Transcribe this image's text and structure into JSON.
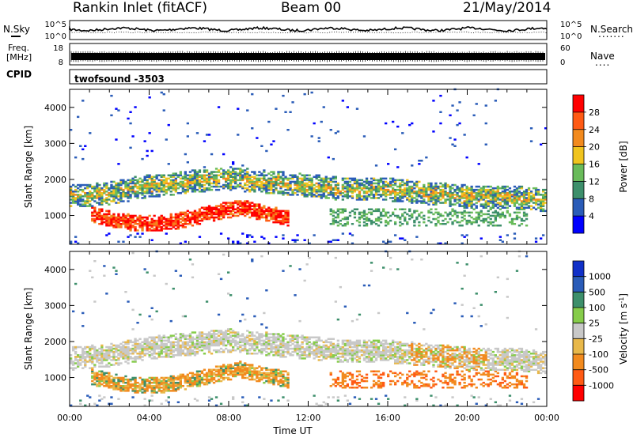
{
  "header": {
    "station": "Rankin Inlet (fitACF)",
    "beam": "Beam 00",
    "date": "21/May/2014"
  },
  "noise_panel": {
    "left_label": "N.Sky",
    "right_label": "N.Search",
    "right_marker": ".......",
    "left_ticks": [
      "10^5",
      "10^0"
    ],
    "right_ticks": [
      "10^5",
      "10^0"
    ]
  },
  "freq_panel": {
    "left_label_1": "Freq.",
    "left_label_2": "[MHz]",
    "right_label": "Nave",
    "right_marker": "....",
    "left_ticks": [
      "18",
      "8"
    ],
    "right_ticks": [
      "60",
      "0"
    ]
  },
  "cpid_panel": {
    "label": "CPID",
    "value": "twofsound -3503"
  },
  "colors": {
    "power_scale": [
      "#0000ff",
      "#2a5cb8",
      "#3d8f6b",
      "#69bb5a",
      "#f0c41e",
      "#f28a1e",
      "#ff5a14",
      "#ff0000"
    ],
    "velocity_scale": [
      "#ff0000",
      "#ff5a14",
      "#f28a1e",
      "#e8b84a",
      "#c8c8c8",
      "#86cc4a",
      "#3d8f6b",
      "#2a5cb8",
      "#1030c8"
    ]
  },
  "chart_data": [
    {
      "type": "heatmap",
      "quantity": "Power",
      "ylabel": "Slant Range [km]",
      "ylim": [
        200,
        4500
      ],
      "y_ticks": [
        1000,
        2000,
        3000,
        4000
      ],
      "x_tick_labels": [
        "00:00",
        "04:00",
        "08:00",
        "12:00",
        "16:00",
        "20:00",
        "00:00"
      ],
      "xlim_hours": [
        0,
        24
      ],
      "colorbar": {
        "label": "Power [dB]",
        "ticks": [
          "28",
          "24",
          "20",
          "16",
          "12",
          "8",
          "4"
        ],
        "range": [
          0,
          32
        ]
      },
      "bands": [
        {
          "t0": 0,
          "t1": 24,
          "r_center": [
            1500,
            1600,
            1800,
            1900,
            2000,
            1900,
            1800,
            1700,
            1700,
            1600,
            1500,
            1500,
            1400
          ],
          "width": 400,
          "value": 12
        },
        {
          "t0": 1,
          "t1": 11,
          "r_center": [
            1000,
            900,
            800,
            750,
            750,
            800,
            900,
            1000,
            1100,
            1200,
            1100,
            1000,
            900
          ],
          "width": 450,
          "value": 26
        }
      ]
    },
    {
      "type": "heatmap",
      "quantity": "Velocity",
      "ylabel": "Slant Range [km]",
      "ylim": [
        200,
        4500
      ],
      "y_ticks": [
        1000,
        2000,
        3000,
        4000
      ],
      "x_tick_labels": [
        "00:00",
        "04:00",
        "08:00",
        "12:00",
        "16:00",
        "20:00",
        "00:00"
      ],
      "xlabel": "Time UT",
      "xlim_hours": [
        0,
        24
      ],
      "colorbar": {
        "label": "Velocity [m s",
        "label_sup": "-1",
        "label_end": "]",
        "ticks": [
          "1000",
          "500",
          "100",
          "25",
          "-25",
          "-100",
          "-500",
          "-1000"
        ]
      }
    }
  ]
}
